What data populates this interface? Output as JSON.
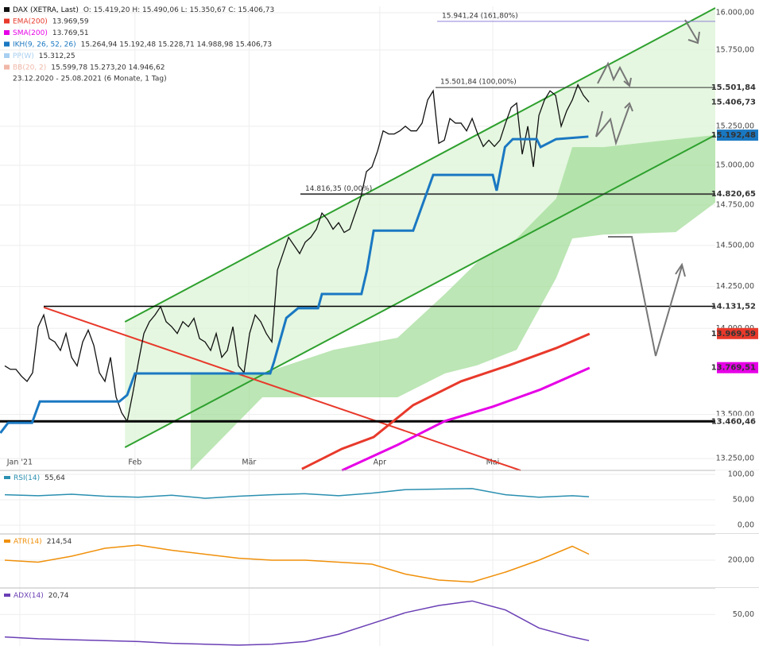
{
  "chart_data": [
    {
      "type": "line",
      "log": true,
      "xlim": [
        -0.86,
        127.7
      ],
      "ylim": [
        13184,
        16043
      ],
      "xticks": [
        {
          "value": 2.7,
          "label": "Jan '21"
        },
        {
          "value": 23.4,
          "label": "Feb"
        },
        {
          "value": 43.9,
          "label": "Mär"
        },
        {
          "value": 67.4,
          "label": "Apr"
        },
        {
          "value": 87.7,
          "label": "Mai"
        }
      ],
      "yticks": [
        {
          "value": 16000,
          "label": "16.000,00"
        },
        {
          "value": 15750,
          "label": "15.750,00"
        },
        {
          "value": 15250,
          "label": "15.250,00"
        },
        {
          "value": 15000,
          "label": "15.000,00"
        },
        {
          "value": 14750,
          "label": "14.750,00"
        },
        {
          "value": 14500,
          "label": "14.500,00"
        },
        {
          "value": 14250,
          "label": "14.250,00"
        },
        {
          "value": 14000,
          "label": "14.000,00"
        },
        {
          "value": 13500,
          "label": "13.500,00"
        },
        {
          "value": 13250,
          "label": "13.250,00"
        }
      ],
      "series": [
        {
          "name": "DAX (XETRA, Last)",
          "legend_text": "O: 15.419,20  H: 15.490,06  L: 15.350,67  C: 15.406,73",
          "color": "#111111",
          "values": [
            13780,
            13760,
            13760,
            13720,
            13690,
            13740,
            14010,
            14080,
            13940,
            13920,
            13870,
            13970,
            13830,
            13780,
            13920,
            13990,
            13900,
            13740,
            13690,
            13830,
            13600,
            13510,
            13460,
            13620,
            13800,
            13970,
            14040,
            14080,
            14130,
            14040,
            14010,
            13970,
            14040,
            14010,
            14060,
            13940,
            13920,
            13870,
            13970,
            13830,
            13870,
            14010,
            13780,
            13740,
            13970,
            14080,
            14040,
            13970,
            13920,
            14350,
            14450,
            14550,
            14500,
            14450,
            14520,
            14550,
            14600,
            14700,
            14660,
            14600,
            14640,
            14580,
            14600,
            14700,
            14800,
            14960,
            14990,
            15090,
            15220,
            15200,
            15200,
            15220,
            15250,
            15220,
            15220,
            15270,
            15420,
            15480,
            15140,
            15160,
            15300,
            15270,
            15270,
            15220,
            15300,
            15200,
            15120,
            15160,
            15120,
            15160,
            15270,
            15370,
            15400,
            15070,
            15250,
            14990,
            15320,
            15420,
            15480,
            15450,
            15250,
            15350,
            15420,
            15520,
            15450,
            15406.73
          ]
        },
        {
          "name": "EMA(200)",
          "legend_text": "13.969,59",
          "color": "#e8392b",
          "x": [
            53.4,
            60.6,
            66.3,
            73.4,
            82,
            90.6,
            99.1,
            105.1
          ],
          "values": [
            13192,
            13305,
            13371,
            13553,
            13690,
            13783,
            13884,
            13968
          ]
        },
        {
          "name": "SMA(200)",
          "legend_text": "13.769,51",
          "color": "#e600e6",
          "x": [
            60.6,
            70.6,
            79.1,
            87.7,
            96.3,
            105.1
          ],
          "values": [
            13184,
            13327,
            13462,
            13544,
            13643,
            13768
          ]
        },
        {
          "name": "IKH(9, 26, 52, 26)",
          "legend_text": "15.264,94  15.192,48  15.228,71  14.988,98  15.406,73",
          "color": "#1a78c2",
          "x": [
            -0.8,
            0.6,
            4.9,
            6.3,
            20.6,
            22,
            23.4,
            47.7,
            48.4,
            50.6,
            52.7,
            56.3,
            57,
            64.1,
            65.1,
            66.3,
            73.4,
            77,
            87.7,
            88.4,
            89.9,
            91.3,
            95.6,
            96.3,
            99.1,
            104.9
          ],
          "values": [
            13394,
            13452,
            13452,
            13574,
            13574,
            13611,
            13736,
            13736,
            13805,
            14062,
            14120,
            14120,
            14205,
            14205,
            14349,
            14591,
            14591,
            14939,
            14939,
            14840,
            15116,
            15167,
            15167,
            15116,
            15167,
            15183
          ]
        }
      ],
      "cloud": {
        "color": "#9fdc95",
        "x": [
          33.4,
          46.3,
          59.1,
          70.6,
          79.1,
          84.9,
          92,
          99.1,
          102,
          107.7,
          120.6,
          127.7
        ],
        "upper": [
          13736,
          13736,
          13874,
          13945,
          14205,
          14397,
          14543,
          14790,
          15116,
          15116,
          15167,
          15193
        ],
        "lower": [
          13184,
          13598,
          13598,
          13598,
          13736,
          13783,
          13874,
          14301,
          14543,
          14567,
          14582,
          14765
        ]
      },
      "trendlines": [
        {
          "color": "#2ea02e",
          "x": [
            21.6,
            127.7
          ],
          "values": [
            14039,
            16032
          ]
        },
        {
          "color": "#2ea02e",
          "x": [
            21.6,
            127.7
          ],
          "values": [
            13313,
            15193
          ]
        },
        {
          "color": "#e8392b",
          "x": [
            7,
            92.7
          ],
          "values": [
            14125,
            13184
          ]
        }
      ],
      "lines": [
        {
          "value": 15941.24,
          "label": "15.941,24 (161,80%)",
          "color": "#9080d8"
        },
        {
          "value": 15501.84,
          "label": "15.501,84 (100,00%)",
          "color": "#333333"
        },
        {
          "value": 14816.35,
          "label": "14.816,35 (0,00%)",
          "color": "#333333"
        },
        {
          "value": 14820.65,
          "color": "#333333"
        },
        {
          "value": 14131.52,
          "color": "#000000"
        },
        {
          "value": 13460.46,
          "color": "#000000"
        }
      ],
      "price_labels": [
        {
          "value": 15501.84,
          "label": "15.501,84",
          "bg": "#ffffff",
          "color": "#000000"
        },
        {
          "value": 15406.73,
          "label": "15.406,73",
          "bg": "#ffffff",
          "color": "#000000"
        },
        {
          "value": 15192.48,
          "label": "15.192,48",
          "bg": "#1a78c2",
          "color": "#ffffff"
        },
        {
          "value": 14820.65,
          "label": "14.820,65",
          "bg": "#ffffff",
          "color": "#000000"
        },
        {
          "value": 14131.52,
          "label": "14.131,52",
          "bg": "#ffffff",
          "color": "#000000"
        },
        {
          "value": 13969.59,
          "label": "13.969,59",
          "bg": "#e8392b",
          "color": "#ffffff"
        },
        {
          "value": 13769.51,
          "label": "13.769,51",
          "bg": "#e600e6",
          "color": "#ffffff"
        },
        {
          "value": 13460.46,
          "label": "13.460,46",
          "bg": "#ffffff",
          "color": "#000000"
        }
      ],
      "indicators": [
        {
          "name": "PP(W)",
          "text": "15.312,25",
          "color": "#a8cff0"
        },
        {
          "name": "BB(20, 2)",
          "text": "15.599,78  15.273,20  14.946,62",
          "color": "#f0b8a8"
        }
      ],
      "period": "23.12.2020 - 25.08.2021 (6 Monate, 1 Tag)"
    },
    {
      "type": "line",
      "ylim": [
        0,
        100
      ],
      "yticks": [
        {
          "value": 100,
          "label": "100,00"
        },
        {
          "value": 50,
          "label": "50,00"
        },
        {
          "value": 0,
          "label": "0,00"
        }
      ],
      "series": [
        {
          "name": "RSI(14)",
          "legend_text": "55,64",
          "color": "#2a8fb0",
          "x": [
            0,
            6,
            12,
            18,
            24,
            30,
            36,
            42,
            48,
            54,
            60,
            66,
            72,
            78,
            84,
            90,
            96,
            102,
            105
          ],
          "values": [
            60,
            58,
            61,
            57,
            55,
            59,
            53,
            57,
            60,
            62,
            58,
            63,
            70,
            71,
            72,
            60,
            55,
            58,
            56
          ]
        }
      ]
    },
    {
      "type": "line",
      "ylim": [
        130,
        250
      ],
      "yticks": [
        {
          "value": 200,
          "label": "200,00"
        }
      ],
      "series": [
        {
          "name": "ATR(14)",
          "legend_text": "214,54",
          "color": "#f0900a",
          "x": [
            0,
            6,
            12,
            18,
            24,
            30,
            36,
            42,
            48,
            54,
            60,
            66,
            72,
            78,
            84,
            90,
            96,
            102,
            105
          ],
          "values": [
            200,
            195,
            210,
            230,
            238,
            225,
            215,
            205,
            200,
            200,
            195,
            190,
            165,
            150,
            145,
            170,
            200,
            235,
            215
          ]
        }
      ]
    },
    {
      "type": "line",
      "ylim": [
        15,
        75
      ],
      "yticks": [
        {
          "value": 50,
          "label": "50,00"
        }
      ],
      "series": [
        {
          "name": "ADX(14)",
          "legend_text": "20,74",
          "color": "#6a3fb5",
          "x": [
            0,
            6,
            12,
            18,
            24,
            30,
            36,
            42,
            48,
            54,
            60,
            66,
            72,
            78,
            84,
            90,
            96,
            102,
            105
          ],
          "values": [
            25,
            23,
            22,
            21,
            20,
            18,
            17,
            16,
            17,
            20,
            28,
            40,
            52,
            60,
            65,
            55,
            35,
            25,
            21
          ]
        }
      ]
    }
  ]
}
